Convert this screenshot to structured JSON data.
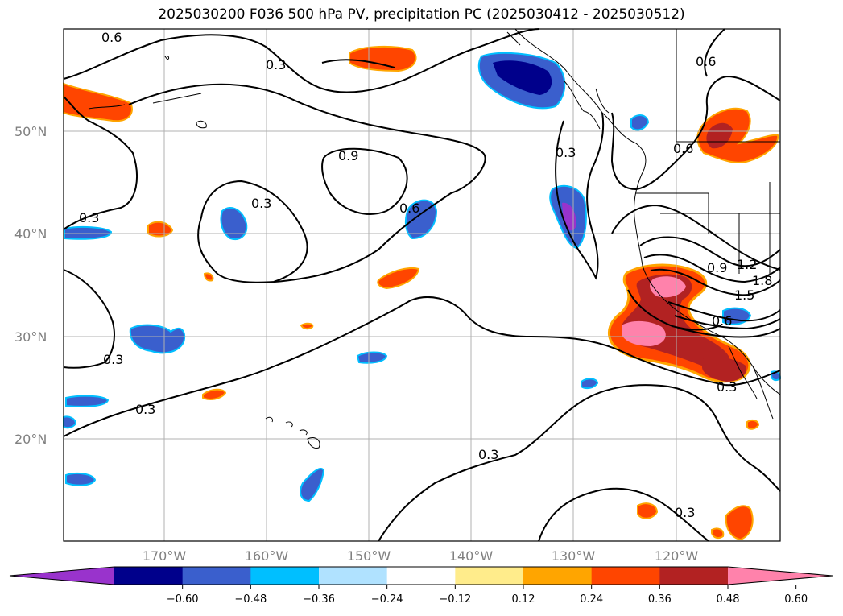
{
  "title": "2025030200 F036 500 hPa PV, precipitation PC (2025030412 - 2025030512)",
  "lat_labels": [
    "50°N",
    "40°N",
    "30°N",
    "20°N"
  ],
  "lon_labels": [
    "170°W",
    "160°W",
    "150°W",
    "140°W",
    "130°W",
    "120°W"
  ],
  "contour_labels": [
    "0.6",
    "0.6",
    "0.9",
    "0.3",
    "0.6",
    "0.3",
    "0.3",
    "0.6",
    "0.3",
    "0.3",
    "0.3",
    "0.3",
    "0.3",
    "0.9",
    "1.2",
    "1.5",
    "1.8",
    "0.6",
    "0.3"
  ],
  "colorbar": {
    "ticks": [
      "−0.60",
      "−0.48",
      "−0.36",
      "−0.24",
      "−0.12",
      "0.12",
      "0.24",
      "0.36",
      "0.48",
      "0.60"
    ],
    "colors": [
      "#9933cc",
      "#00008b",
      "#3a5fcd",
      "#00bfff",
      "#b0e2ff",
      "#ffffff",
      "#ffec8b",
      "#ffa500",
      "#ff4500",
      "#b22222",
      "#ff82ab"
    ]
  },
  "colors": {
    "neg_strong": "#00008b",
    "neg_mid": "#3a5fcd",
    "neg_light": "#00bfff",
    "pos_light": "#ffa500",
    "pos_mid": "#ff4500",
    "pos_strong": "#b22222",
    "pos_max": "#ff82ab"
  }
}
